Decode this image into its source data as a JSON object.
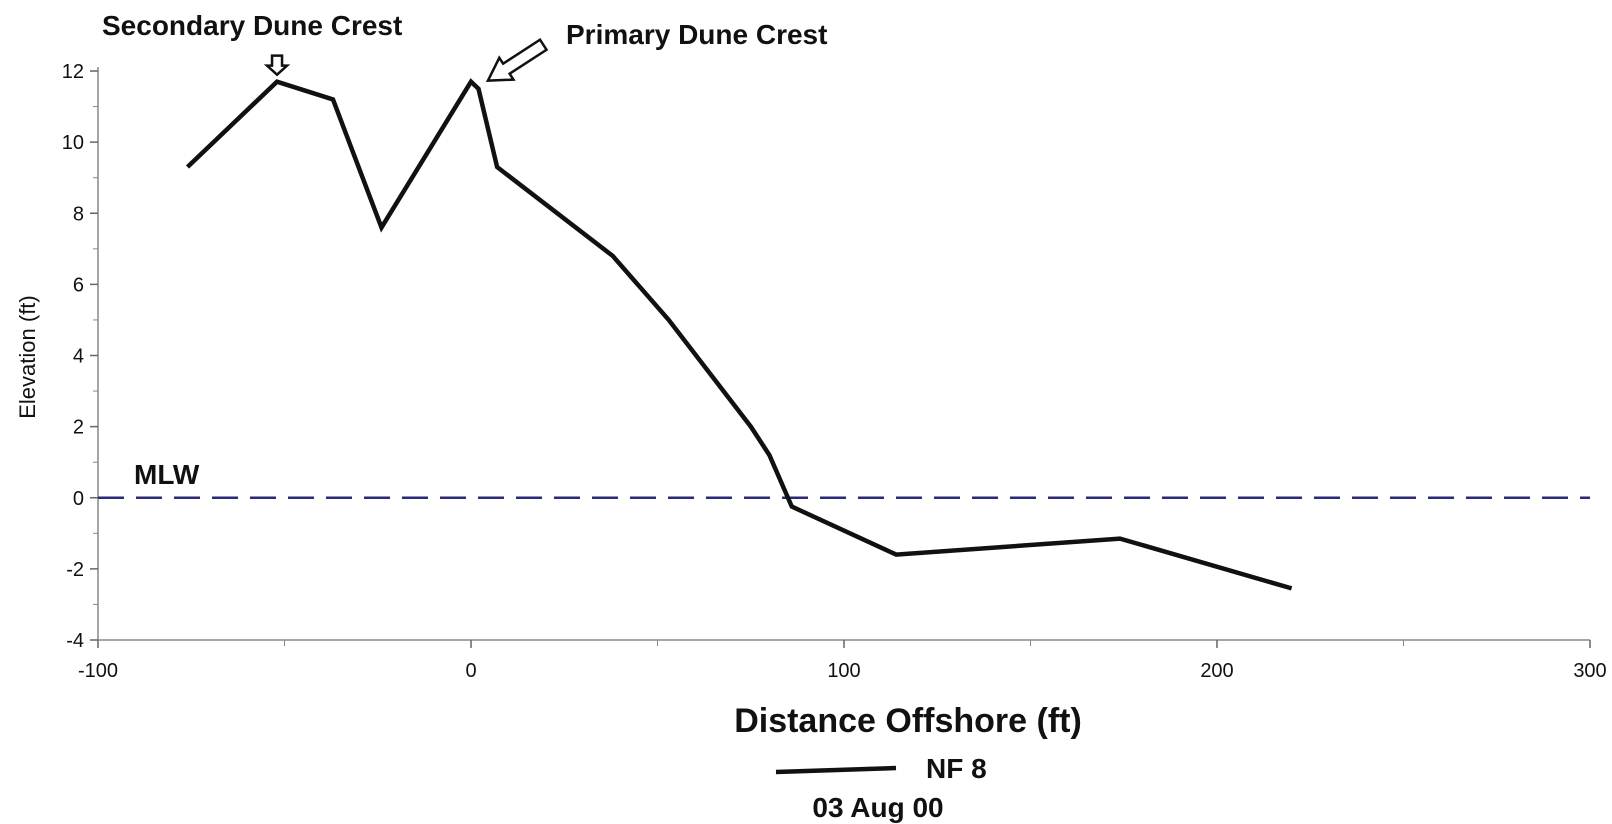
{
  "chart_data": {
    "type": "line",
    "xlabel": "Distance Offshore (ft)",
    "ylabel": "Elevation (ft)",
    "xlim": [
      -100,
      300
    ],
    "ylim": [
      -4,
      12
    ],
    "x_ticks": [
      -100,
      0,
      100,
      200,
      300
    ],
    "x_minor_ticks": [
      -50,
      50,
      150,
      250
    ],
    "y_ticks": [
      -4,
      -2,
      0,
      2,
      4,
      6,
      8,
      10,
      12
    ],
    "y_minor_ticks": [
      -3,
      -1,
      1,
      3,
      5,
      7,
      9,
      11
    ],
    "grid": false,
    "legend_position": "bottom",
    "series": [
      {
        "name": "NF 8",
        "color": "#111111",
        "x": [
          -76,
          -52,
          -37,
          -24,
          0,
          2,
          7,
          38,
          53,
          75,
          80,
          86,
          114,
          174,
          220
        ],
        "y": [
          9.3,
          11.7,
          11.2,
          7.6,
          11.7,
          11.5,
          9.3,
          6.8,
          5.0,
          2.0,
          1.2,
          -0.25,
          -1.6,
          -1.15,
          -2.55
        ]
      }
    ],
    "reference_lines": [
      {
        "label": "MLW",
        "y": 0,
        "style": "dashed",
        "color": "#2a2a7a"
      }
    ],
    "annotations": [
      {
        "text": "Secondary Dune Crest",
        "x": -52,
        "y": 11.7
      },
      {
        "text": "Primary Dune Crest",
        "x": 4,
        "y": 11.7
      }
    ],
    "legend": {
      "entries": [
        "NF 8"
      ],
      "subtitle": "03 Aug 00"
    }
  }
}
